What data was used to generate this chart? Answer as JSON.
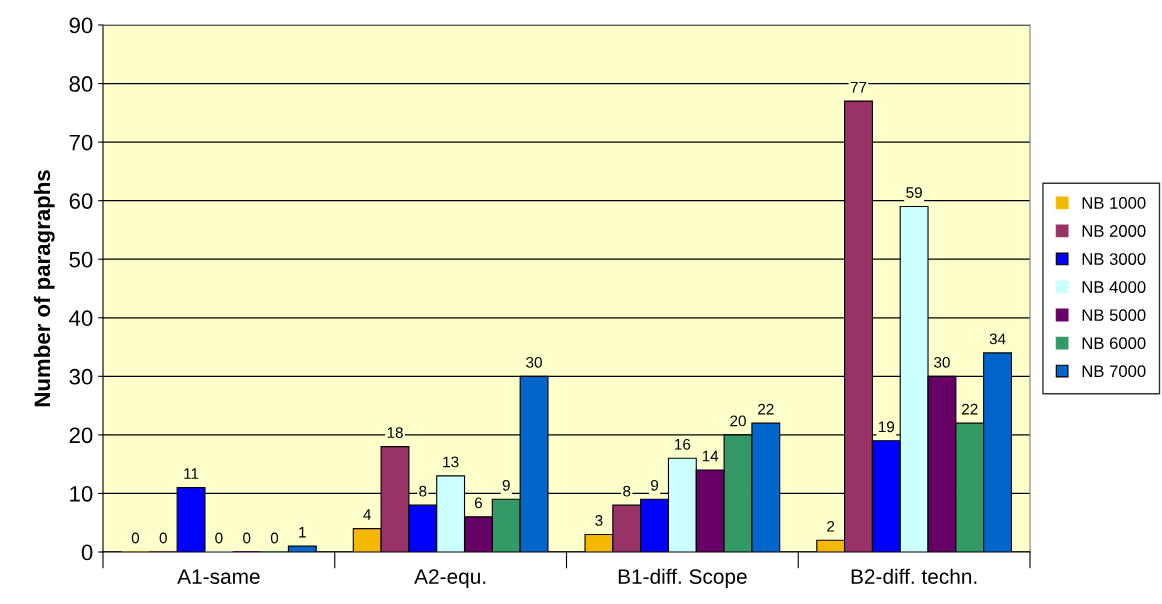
{
  "chart_data": {
    "type": "bar",
    "ylabel": "Number of paragraphs",
    "categories": [
      "A1-same",
      "A2-equ.",
      "B1-diff. Scope",
      "B2-diff. techn."
    ],
    "series": [
      {
        "name": "NB 1000",
        "color": "#f5b800",
        "values": [
          0,
          4,
          3,
          2
        ]
      },
      {
        "name": "NB 2000",
        "color": "#993366",
        "values": [
          0,
          18,
          8,
          77
        ]
      },
      {
        "name": "NB 3000",
        "color": "#0000ff",
        "values": [
          11,
          8,
          9,
          19
        ]
      },
      {
        "name": "NB 4000",
        "color": "#ccffff",
        "values": [
          0,
          13,
          16,
          59
        ]
      },
      {
        "name": "NB 5000",
        "color": "#660066",
        "values": [
          0,
          6,
          14,
          30
        ]
      },
      {
        "name": "NB 6000",
        "color": "#339966",
        "values": [
          0,
          9,
          20,
          22
        ]
      },
      {
        "name": "NB 7000",
        "color": "#0066cc",
        "values": [
          1,
          30,
          22,
          34
        ]
      }
    ],
    "ylim": [
      0,
      90
    ],
    "yticks": [
      0,
      10,
      20,
      30,
      40,
      50,
      60,
      70,
      80,
      90
    ],
    "grid": "y",
    "legend": "right",
    "data_labels": true
  }
}
